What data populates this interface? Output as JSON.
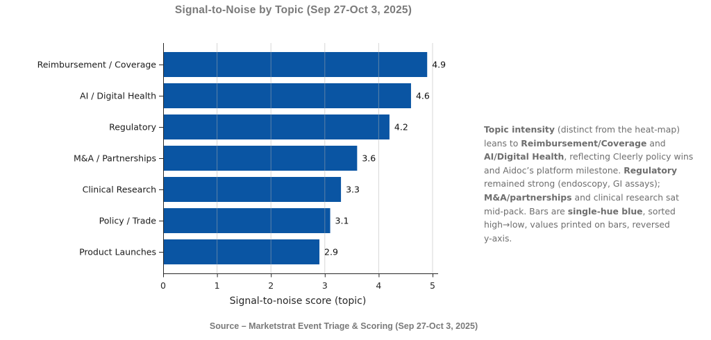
{
  "title": "Signal-to-Noise by Topic (Sep 27-Oct 3, 2025)",
  "chart_data": {
    "type": "bar",
    "orientation": "horizontal",
    "title": "Signal-to-Noise by Topic (Sep 27-Oct 3, 2025)",
    "categories": [
      "Reimbursement / Coverage",
      "AI / Digital Health",
      "Regulatory",
      "M&A / Partnerships",
      "Clinical Research",
      "Policy / Trade",
      "Product Launches"
    ],
    "values": [
      4.9,
      4.6,
      4.2,
      3.6,
      3.3,
      3.1,
      2.9
    ],
    "value_labels": [
      "4.9",
      "4.6",
      "4.2",
      "3.6",
      "3.3",
      "3.1",
      "2.9"
    ],
    "xlabel": "Signal-to-noise score (topic)",
    "xticks": [
      "0",
      "1",
      "2",
      "3",
      "4",
      "5"
    ],
    "xlim": [
      0,
      5
    ],
    "grid": "vertical-light",
    "legend": "none",
    "sort_order": "high-to-low, reversed y-axis",
    "bar_color": "#0a55a3",
    "gridline_color": "#b0b0b0",
    "axis_color": "#262626",
    "label_color": "#1a1a1a",
    "value_color": "#0d0d0d"
  },
  "annotation": {
    "color": "#6e6e6e",
    "lines": [
      [
        {
          "t": "Topic intensity",
          "b": true
        },
        {
          "t": " (distinct from the heat-map)",
          "b": false
        }
      ],
      [
        {
          "t": "leans to ",
          "b": false
        },
        {
          "t": "Reimbursement/Coverage",
          "b": true
        },
        {
          "t": " and",
          "b": false
        }
      ],
      [
        {
          "t": "AI/Digital Health",
          "b": true
        },
        {
          "t": ", reflecting Cleerly policy wins",
          "b": false
        }
      ],
      [
        {
          "t": "and Aidoc’s platform milestone. ",
          "b": false
        },
        {
          "t": "Regulatory",
          "b": true
        }
      ],
      [
        {
          "t": "remained strong (endoscopy, GI assays);",
          "b": false
        }
      ],
      [
        {
          "t": "M&A/partnerships",
          "b": true
        },
        {
          "t": " and clinical research sat",
          "b": false
        }
      ],
      [
        {
          "t": "mid-pack. Bars are ",
          "b": false
        },
        {
          "t": "single-hue blue",
          "b": true
        },
        {
          "t": ", sorted",
          "b": false
        }
      ],
      [
        {
          "t": "high→low, values printed on bars, reversed",
          "b": false
        }
      ],
      [
        {
          "t": "y-axis.",
          "b": false
        }
      ]
    ]
  },
  "source": {
    "text": "Source – Marketstrat Event Triage & Scoring (Sep 27-Oct 3, 2025)"
  }
}
